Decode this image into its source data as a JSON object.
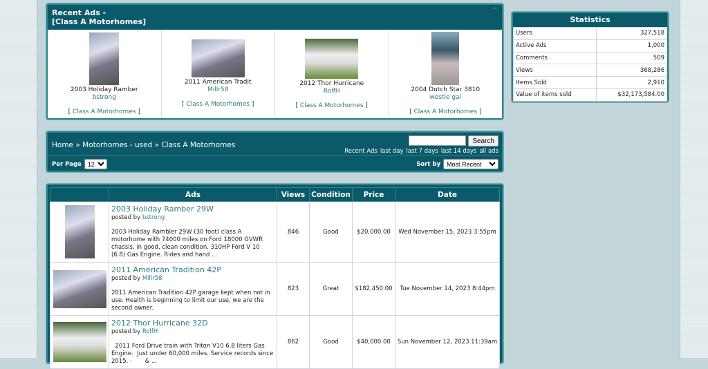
{
  "recent_ads": {
    "title_line1": "Recent Ads -",
    "title_line2": "[Class A Motorhomes]",
    "collapse_icon": "chevron-up-icon",
    "items": [
      {
        "title": "2003 Holiday Ramber",
        "user": "bstrong",
        "category": "Class A Motorhomes"
      },
      {
        "title": "2011 American Tradit",
        "user": "Millr58",
        "category": "Class A Motorhomes"
      },
      {
        "title": "2012 Thor Hurricane",
        "user": "RolfH",
        "category": "Class A Motorhomes"
      },
      {
        "title": "2004 Dutch Star 3810",
        "user": "westie gal",
        "category": "Class A Motorhomes"
      }
    ]
  },
  "statistics": {
    "title": "Statistics",
    "rows": [
      {
        "label": "Users",
        "value": "327,518"
      },
      {
        "label": "Active Ads",
        "value": "1,000"
      },
      {
        "label": "Comments",
        "value": "509"
      },
      {
        "label": "Views",
        "value": "368,286"
      },
      {
        "label": "Items Sold",
        "value": "2,910"
      },
      {
        "label": "Value of items sold",
        "value": "$32,173,584.00"
      }
    ]
  },
  "nav": {
    "breadcrumb": [
      "Home",
      "Motorhomes - used",
      "Class A Motorhomes"
    ],
    "separator": "»",
    "search_placeholder": "",
    "search_label": "Search",
    "recent_label": "Recent Ads",
    "recent_links": [
      "last day",
      "last 7 days",
      "last 14 days",
      "all ads"
    ],
    "per_page_label": "Per Page",
    "per_page_value": "12",
    "sort_label": "Sort by",
    "sort_value": "Most Recent"
  },
  "table": {
    "headers": [
      "",
      "Ads",
      "Views",
      "Condition",
      "Price",
      "Date"
    ],
    "posted_by": "posted by",
    "rows": [
      {
        "title": "2003 Holiday Ramber 29W",
        "user": "bstrong",
        "desc": "2003 Holiday Rambler 29W (30 foot) class A motorhome with 74000 miles on Ford 18000 GVWR chassis, in good, clean condition. 310HP Ford V 10 (6.8) Gas Engine. Rides and hand ...",
        "views": "846",
        "condition": "Good",
        "price": "$20,000.00",
        "date": "Wed November 15, 2023 3:55pm"
      },
      {
        "title": "2011 American Tradition 42P",
        "user": "Millr58",
        "desc": "2011 American Tradition 42P garage kept when not in use. Health is beginning to limit our use, we are the second owner.",
        "views": "823",
        "condition": "Great",
        "price": "$182,450.00",
        "date": "Tue November 14, 2023 8:44pm"
      },
      {
        "title": "2012 Thor Hurricane 32D",
        "user": "RolfH",
        "desc": "  2011 Ford Drive train with Triton V10 6.8 liters Gas Engine.  Just under 60,000 miles. Service records since 2015. ·       & ...",
        "views": "862",
        "condition": "Good",
        "price": "$40,000.00",
        "date": "Sun November 12, 2023 11:39am"
      }
    ]
  }
}
